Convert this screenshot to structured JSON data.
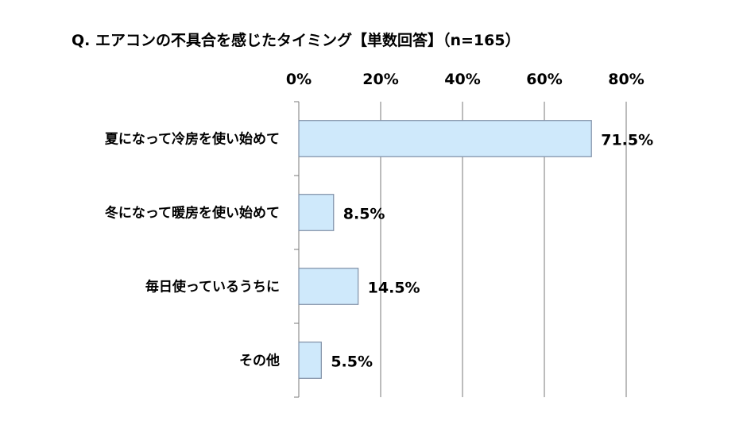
{
  "chart_data": {
    "type": "bar",
    "orientation": "horizontal",
    "title": "Q.  エアコンの不具合を感じたタイミング【単数回答】（n=165）",
    "categories": [
      "夏になって冷房を使い始めて",
      "冬になって暖房を使い始めて",
      "毎日使っているうちに",
      "その他"
    ],
    "values": [
      71.5,
      8.5,
      14.5,
      5.5
    ],
    "value_labels": [
      "71.5%",
      "8.5%",
      "14.5%",
      "5.5%"
    ],
    "xlim": [
      0,
      80
    ],
    "x_ticks": [
      "0%",
      "20%",
      "40%",
      "60%",
      "80%"
    ],
    "x_axis_position": "top",
    "grid": true,
    "bar_color": "#cfe9fb"
  }
}
